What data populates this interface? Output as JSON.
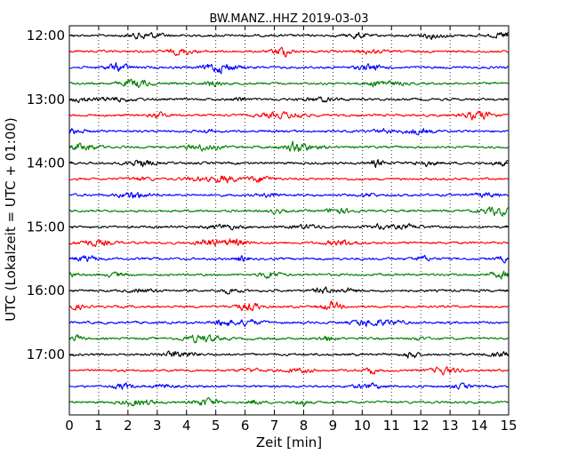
{
  "chart_data": {
    "type": "line",
    "title": "BW.MANZ..HHZ 2019-03-03",
    "xlabel": "Zeit  [min]",
    "ylabel": "UTC (Lokalzeit = UTC + 01:00)",
    "xlim": [
      0,
      15
    ],
    "x_ticks": [
      "0",
      "1",
      "2",
      "3",
      "4",
      "5",
      "6",
      "7",
      "8",
      "9",
      "10",
      "11",
      "12",
      "13",
      "14",
      "15"
    ],
    "y_tick_labels": [
      "12:00",
      "13:00",
      "14:00",
      "15:00",
      "16:00",
      "17:00"
    ],
    "grid": "vertical dotted lines at each minute",
    "trace_interval_minutes": 15,
    "trace_start_times": [
      "12:00",
      "12:15",
      "12:30",
      "12:45",
      "13:00",
      "13:15",
      "13:30",
      "13:45",
      "14:00",
      "14:15",
      "14:30",
      "14:45",
      "15:00",
      "15:15",
      "15:30",
      "15:45",
      "16:00",
      "16:15",
      "16:30",
      "16:45",
      "17:00",
      "17:15",
      "17:30",
      "17:45"
    ],
    "trace_colors": [
      "#000000",
      "#ff0000",
      "#0000ff",
      "#008000"
    ],
    "legend": "none"
  }
}
